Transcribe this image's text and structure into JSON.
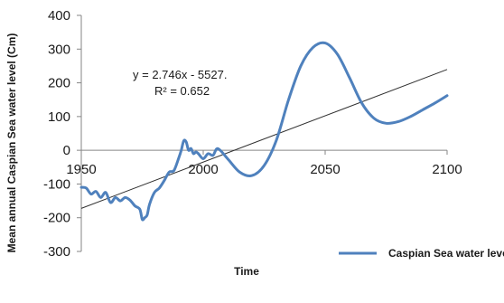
{
  "chart_data": {
    "type": "line",
    "title": "",
    "xlabel": "Time",
    "ylabel": "Mean annual Caspian Sea water level (Cm)",
    "xlim": [
      1950,
      2100
    ],
    "ylim": [
      -300,
      400
    ],
    "x_ticks": [
      1950,
      2000,
      2050,
      2100
    ],
    "y_ticks": [
      -300,
      -200,
      -100,
      0,
      100,
      200,
      300,
      400
    ],
    "x_tick_labels": [
      "1950",
      "2000",
      "2050",
      "2100"
    ],
    "y_tick_labels": [
      "-300",
      "-200",
      "-100",
      "0",
      "100",
      "200",
      "300",
      "400"
    ],
    "grid": false,
    "legend_position": "bottom-right",
    "series": [
      {
        "name": "Caspian Sea water level",
        "color": "#4f81bd",
        "x": [
          1950,
          1952,
          1954,
          1956,
          1958,
          1960,
          1962,
          1964,
          1966,
          1968,
          1970,
          1972,
          1974,
          1975,
          1976,
          1977,
          1978,
          1980,
          1982,
          1984,
          1986,
          1988,
          1990,
          1991,
          1992,
          1993,
          1994,
          1995,
          1996,
          1997,
          1998,
          2000,
          2002,
          2004,
          2006,
          2010,
          2015,
          2020,
          2025,
          2030,
          2035,
          2040,
          2045,
          2050,
          2055,
          2060,
          2065,
          2070,
          2075,
          2080,
          2085,
          2090,
          2095,
          2100
        ],
        "y": [
          -110,
          -112,
          -130,
          -122,
          -140,
          -125,
          -155,
          -140,
          -150,
          -140,
          -148,
          -165,
          -175,
          -205,
          -200,
          -192,
          -160,
          -125,
          -112,
          -90,
          -65,
          -60,
          -22,
          0,
          28,
          25,
          0,
          5,
          -10,
          -5,
          -10,
          -25,
          -10,
          -15,
          5,
          -25,
          -65,
          -75,
          -45,
          30,
          150,
          250,
          305,
          318,
          285,
          215,
          140,
          95,
          80,
          85,
          100,
          120,
          140,
          162
        ]
      }
    ],
    "trendline": {
      "equation": "y = 2.746x - 5527.",
      "r_squared": "R² = 0.652",
      "slope": 2.746,
      "intercept": -5527,
      "color": "#303030"
    }
  }
}
